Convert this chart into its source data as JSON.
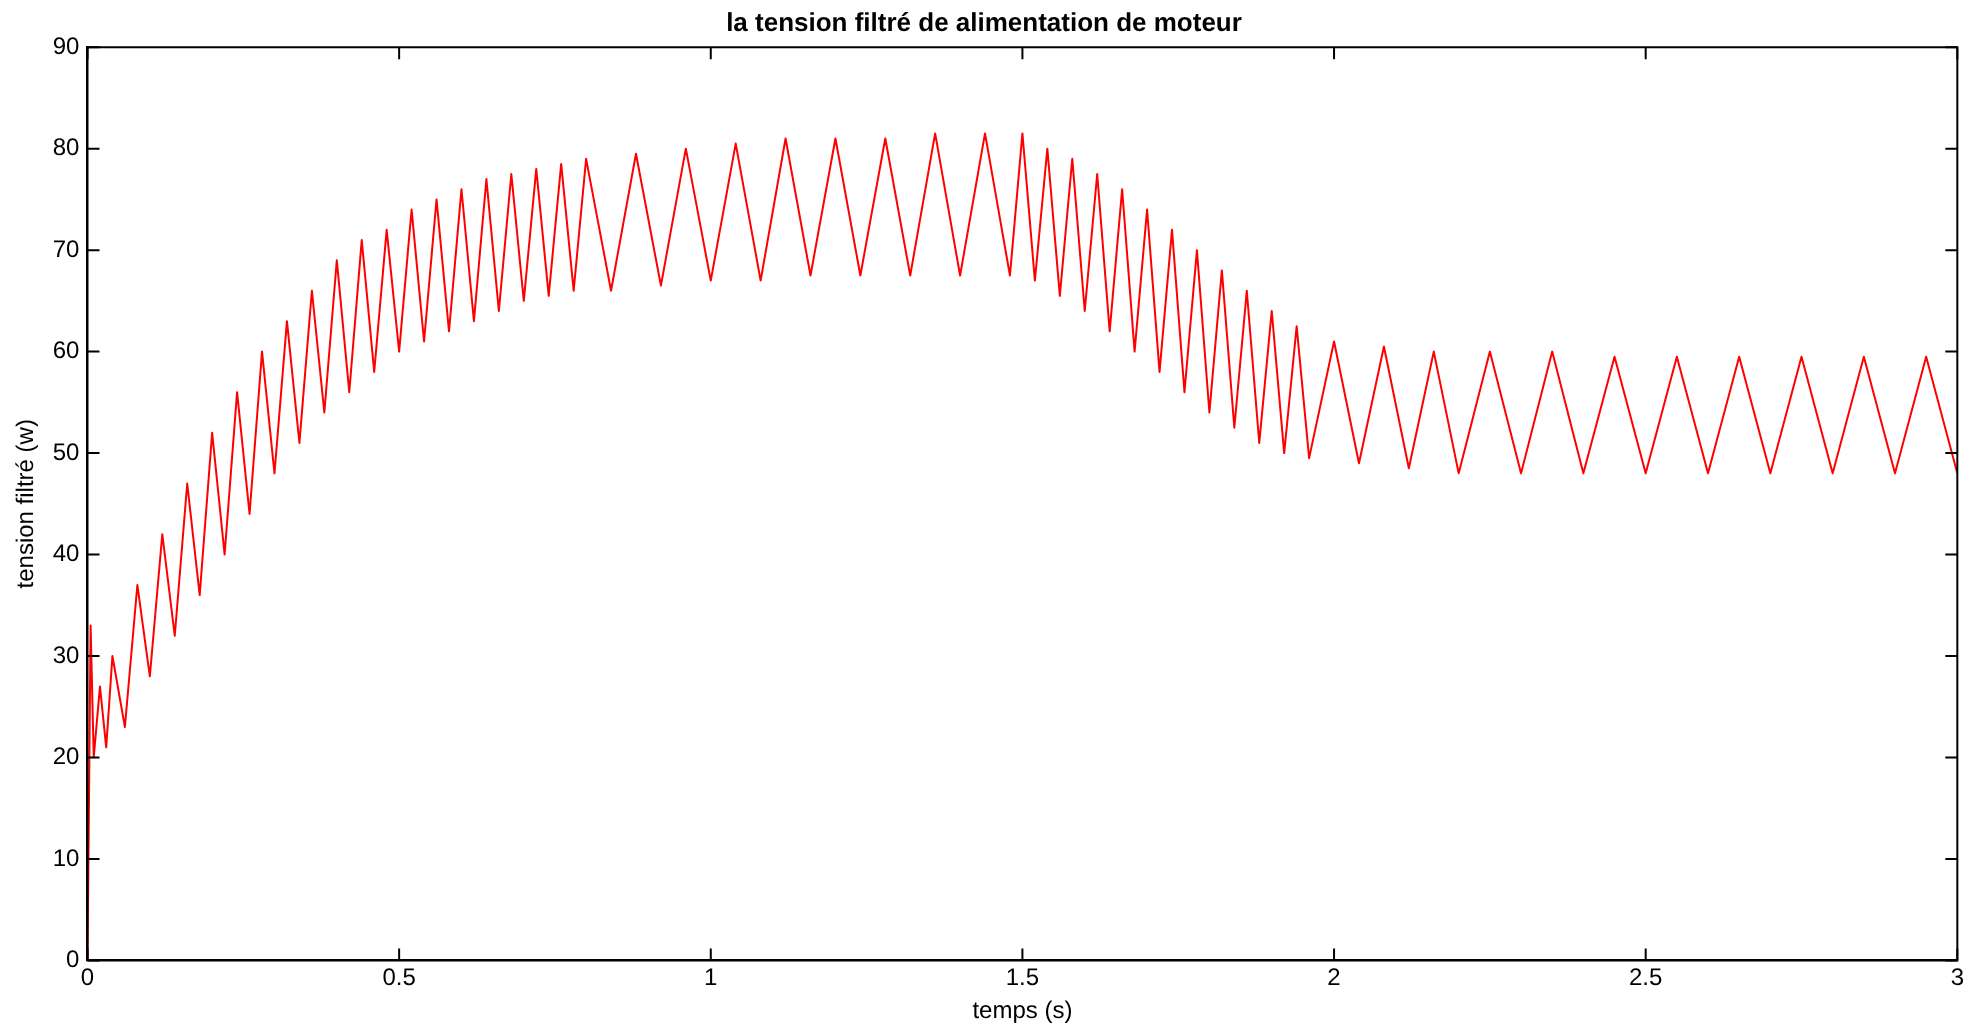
{
  "chart_data": {
    "type": "line",
    "title": "la tension filtré de alimentation de moteur",
    "xlabel": "temps (s)",
    "ylabel": "tension filtré (w)",
    "xlim": [
      0,
      3
    ],
    "xticks": [
      0,
      0.5,
      1,
      1.5,
      2,
      2.5,
      3
    ],
    "ylim": [
      0,
      90
    ],
    "yticks": [
      0,
      10,
      20,
      30,
      40,
      50,
      60,
      70,
      80,
      90
    ],
    "grid": false,
    "legend": false,
    "marker": "none",
    "line_style": "solid",
    "series": [
      {
        "color": "#ff0000",
        "x": [
          0,
          0.005,
          0.01,
          0.02,
          0.03,
          0.04,
          0.06,
          0.08,
          0.1,
          0.12,
          0.14,
          0.16,
          0.18,
          0.2,
          0.22,
          0.24,
          0.26,
          0.28,
          0.3,
          0.32,
          0.34,
          0.36,
          0.38,
          0.4,
          0.42,
          0.44,
          0.46,
          0.48,
          0.5,
          0.52,
          0.54,
          0.56,
          0.58,
          0.6,
          0.62,
          0.64,
          0.66,
          0.68,
          0.7,
          0.72,
          0.74,
          0.76,
          0.78,
          0.8,
          0.84,
          0.88,
          0.92,
          0.96,
          1,
          1.04,
          1.08,
          1.12,
          1.16,
          1.2,
          1.24,
          1.28,
          1.32,
          1.36,
          1.4,
          1.44,
          1.48,
          1.5,
          1.52,
          1.54,
          1.56,
          1.58,
          1.6,
          1.62,
          1.64,
          1.66,
          1.68,
          1.7,
          1.72,
          1.74,
          1.76,
          1.78,
          1.8,
          1.82,
          1.84,
          1.86,
          1.88,
          1.9,
          1.92,
          1.94,
          1.96,
          2,
          2.04,
          2.08,
          2.12,
          2.16,
          2.2,
          2.25,
          2.3,
          2.35,
          2.4,
          2.45,
          2.5,
          2.55,
          2.6,
          2.65,
          2.7,
          2.75,
          2.8,
          2.85,
          2.9,
          2.95,
          3
        ],
        "values": [
          0,
          33,
          20,
          27,
          21,
          30,
          23,
          37,
          28,
          42,
          32,
          47,
          36,
          52,
          40,
          56,
          44,
          60,
          48,
          63,
          51,
          66,
          54,
          69,
          56,
          71,
          58,
          72,
          60,
          74,
          61,
          75,
          62,
          76,
          63,
          77,
          64,
          77.5,
          65,
          78,
          65.5,
          78.5,
          66,
          79,
          66,
          79.5,
          66.5,
          80,
          67,
          80.5,
          67,
          81,
          67.5,
          81,
          67.5,
          81,
          67.5,
          81.5,
          67.5,
          81.5,
          67.5,
          81.5,
          67,
          80,
          65.5,
          79,
          64,
          77.5,
          62,
          76,
          60,
          74,
          58,
          72,
          56,
          70,
          54,
          68,
          52.5,
          66,
          51,
          64,
          50,
          62.5,
          49.5,
          61,
          49,
          60.5,
          48.5,
          60,
          48,
          60,
          48,
          60,
          48,
          59.5,
          48,
          59.5,
          48,
          59.5,
          48,
          59.5,
          48,
          59.5,
          48,
          59.5,
          48
        ]
      }
    ]
  }
}
